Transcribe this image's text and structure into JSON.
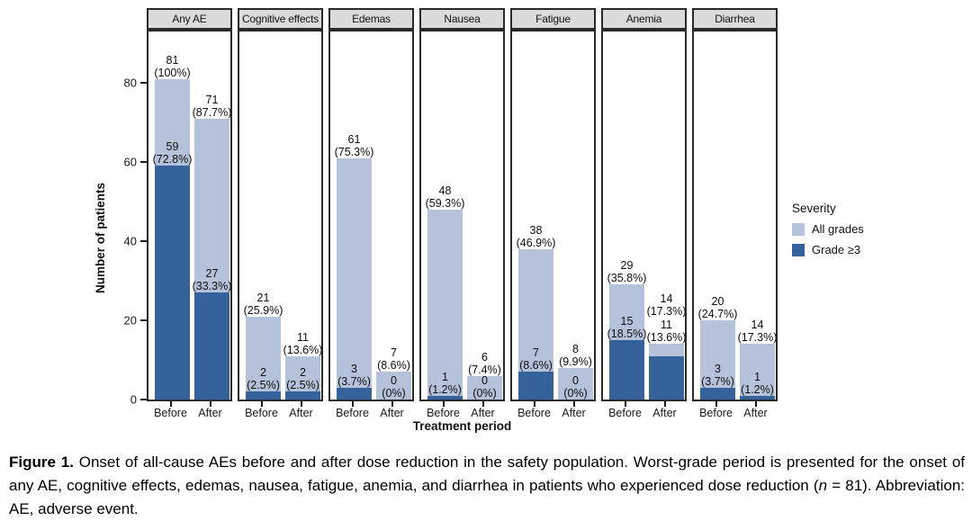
{
  "chart_data": {
    "type": "bar",
    "title": "",
    "xlabel": "Treatment period",
    "ylabel": "Number of patients",
    "yticks": [
      0,
      20,
      40,
      60,
      80
    ],
    "ylim": [
      0,
      93
    ],
    "grid": false,
    "legend_position": "right",
    "x_categories": [
      "Before",
      "After"
    ],
    "legend": {
      "title": "Severity",
      "entries": [
        {
          "label": "All grades",
          "color": "#b5c3da"
        },
        {
          "label": "Grade ≥3",
          "color": "#35629a"
        }
      ]
    },
    "facets": [
      {
        "label": "Any AE",
        "bars": [
          {
            "period": "Before",
            "all_grades": 81,
            "all_pct": "(100%)",
            "grade3": 59,
            "grade3_pct": "(72.8%)"
          },
          {
            "period": "After",
            "all_grades": 71,
            "all_pct": "(87.7%)",
            "grade3": 27,
            "grade3_pct": "(33.3%)"
          }
        ]
      },
      {
        "label": "Cognitive effects",
        "bars": [
          {
            "period": "Before",
            "all_grades": 21,
            "all_pct": "(25.9%)",
            "grade3": 2,
            "grade3_pct": "(2.5%)"
          },
          {
            "period": "After",
            "all_grades": 11,
            "all_pct": "(13.6%)",
            "grade3": 2,
            "grade3_pct": "(2.5%)"
          }
        ]
      },
      {
        "label": "Edemas",
        "bars": [
          {
            "period": "Before",
            "all_grades": 61,
            "all_pct": "(75.3%)",
            "grade3": 3,
            "grade3_pct": "(3.7%)"
          },
          {
            "period": "After",
            "all_grades": 7,
            "all_pct": "(8.6%)",
            "grade3": 0,
            "grade3_pct": "(0%)"
          }
        ]
      },
      {
        "label": "Nausea",
        "bars": [
          {
            "period": "Before",
            "all_grades": 48,
            "all_pct": "(59.3%)",
            "grade3": 1,
            "grade3_pct": "(1.2%)"
          },
          {
            "period": "After",
            "all_grades": 6,
            "all_pct": "(7.4%)",
            "grade3": 0,
            "grade3_pct": "(0%)"
          }
        ]
      },
      {
        "label": "Fatigue",
        "bars": [
          {
            "period": "Before",
            "all_grades": 38,
            "all_pct": "(46.9%)",
            "grade3": 7,
            "grade3_pct": "(8.6%)"
          },
          {
            "period": "After",
            "all_grades": 8,
            "all_pct": "(9.9%)",
            "grade3": 0,
            "grade3_pct": "(0%)"
          }
        ]
      },
      {
        "label": "Anemia",
        "bars": [
          {
            "period": "Before",
            "all_grades": 29,
            "all_pct": "(35.8%)",
            "grade3": 15,
            "grade3_pct": "(18.5%)"
          },
          {
            "period": "After",
            "all_grades": 14,
            "all_pct": "(17.3%)",
            "grade3": 11,
            "grade3_pct": "(13.6%)"
          }
        ]
      },
      {
        "label": "Diarrhea",
        "bars": [
          {
            "period": "Before",
            "all_grades": 20,
            "all_pct": "(24.7%)",
            "grade3": 3,
            "grade3_pct": "(3.7%)"
          },
          {
            "period": "After",
            "all_grades": 14,
            "all_pct": "(17.3%)",
            "grade3": 1,
            "grade3_pct": "(1.2%)"
          }
        ]
      }
    ],
    "colors": {
      "all_grades": "#b5c3da",
      "grade3": "#35629a",
      "strip_bg": "#dbdbd9",
      "border": "#2a2a2a"
    }
  },
  "caption": {
    "label": "Figure 1.",
    "body": " Onset of all-cause AEs before and after dose reduction in the safety population. Worst-grade period is presented for the onset of any AE, cognitive effects, edemas, nausea, fatigue, anemia, and diarrhea in patients who experienced dose reduction (",
    "n_italic": "n",
    "tail": " = 81). Abbreviation: AE, adverse event."
  }
}
